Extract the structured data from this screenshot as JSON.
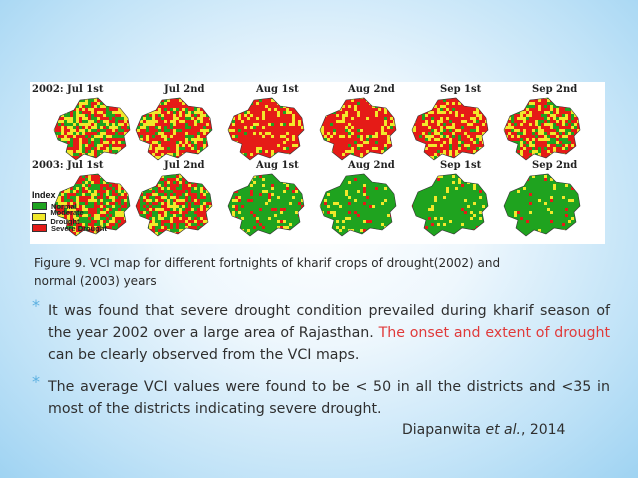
{
  "figure": {
    "rows": [
      {
        "year_label": "2002: Jul 1st",
        "maps": [
          {
            "label": "2002: Jul 1st",
            "green": 0.25,
            "yellow": 0.35,
            "red": 0.4
          },
          {
            "label": "Jul 2nd",
            "green": 0.15,
            "yellow": 0.3,
            "red": 0.55
          },
          {
            "label": "Aug 1st",
            "green": 0.05,
            "yellow": 0.15,
            "red": 0.8
          },
          {
            "label": "Aug 2nd",
            "green": 0.05,
            "yellow": 0.2,
            "red": 0.75
          },
          {
            "label": "Sep 1st",
            "green": 0.1,
            "yellow": 0.25,
            "red": 0.65
          },
          {
            "label": "Sep 2nd",
            "green": 0.2,
            "yellow": 0.3,
            "red": 0.5
          }
        ]
      },
      {
        "year_label": "2003: Jul 1st",
        "maps": [
          {
            "label": "2003: Jul 1st",
            "green": 0.4,
            "yellow": 0.25,
            "red": 0.35
          },
          {
            "label": "Jul 2nd",
            "green": 0.35,
            "yellow": 0.25,
            "red": 0.4
          },
          {
            "label": "Aug 1st",
            "green": 0.8,
            "yellow": 0.1,
            "red": 0.1
          },
          {
            "label": "Aug 2nd",
            "green": 0.85,
            "yellow": 0.1,
            "red": 0.05
          },
          {
            "label": "Sep 1st",
            "green": 0.88,
            "yellow": 0.08,
            "red": 0.04
          },
          {
            "label": "Sep 2nd",
            "green": 0.9,
            "yellow": 0.06,
            "red": 0.04
          }
        ]
      }
    ],
    "legend": {
      "title": "Index",
      "items": [
        {
          "label": "Normal",
          "color": "#1fa31f"
        },
        {
          "label": "Moderate Drought",
          "color": "#f2e82a"
        },
        {
          "label": "Severe Drought",
          "color": "#e51b17"
        }
      ]
    }
  },
  "caption": {
    "line1": "Figure 9. VCI map for different fortnights of kharif crops of drought(2002) and",
    "line2": "normal (2003) years"
  },
  "bullets": [
    {
      "before": "It was found that severe drought condition prevailed during kharif season of the year 2002 over a large area of Rajasthan. ",
      "highlight": "The onset and extent of drought",
      "after": " can be clearly observed from the VCI maps."
    },
    {
      "text": "The average VCI values were found to be < 50 in all the districts and <35 in most of the districts indicating severe drought."
    }
  ],
  "bullet_mark": "*",
  "citation": {
    "author": "Diapanwita",
    "etal": "et al.",
    "year": ", 2014"
  },
  "colors": {
    "normal": "#1fa31f",
    "moderate": "#f2e82a",
    "severe": "#e51b17",
    "accent": "#e03a3a",
    "bullet": "#5bb0e0"
  }
}
